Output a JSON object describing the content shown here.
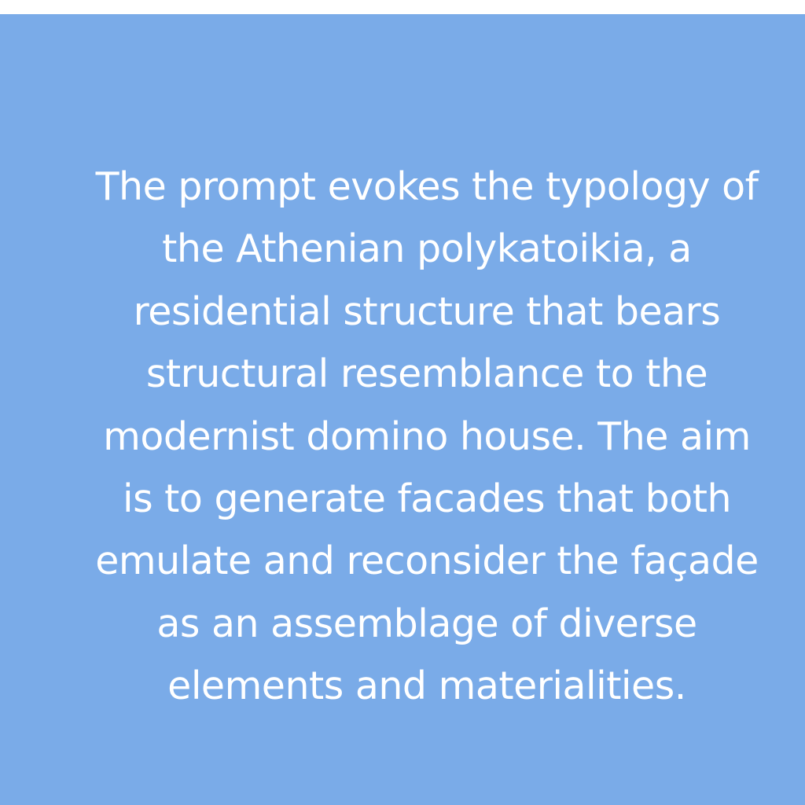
{
  "panel": {
    "background_color": "#7aabe8",
    "text_color": "#ffffff",
    "lines": [
      "The prompt evokes the typology of",
      "the Athenian polykatoikia, a",
      "residential structure that bears",
      "structural resemblance to the",
      "modernist domino house. The aim",
      "is to generate facades that both",
      "emulate and reconsider the façade",
      "as an assemblage of diverse",
      "elements and materialities."
    ]
  }
}
